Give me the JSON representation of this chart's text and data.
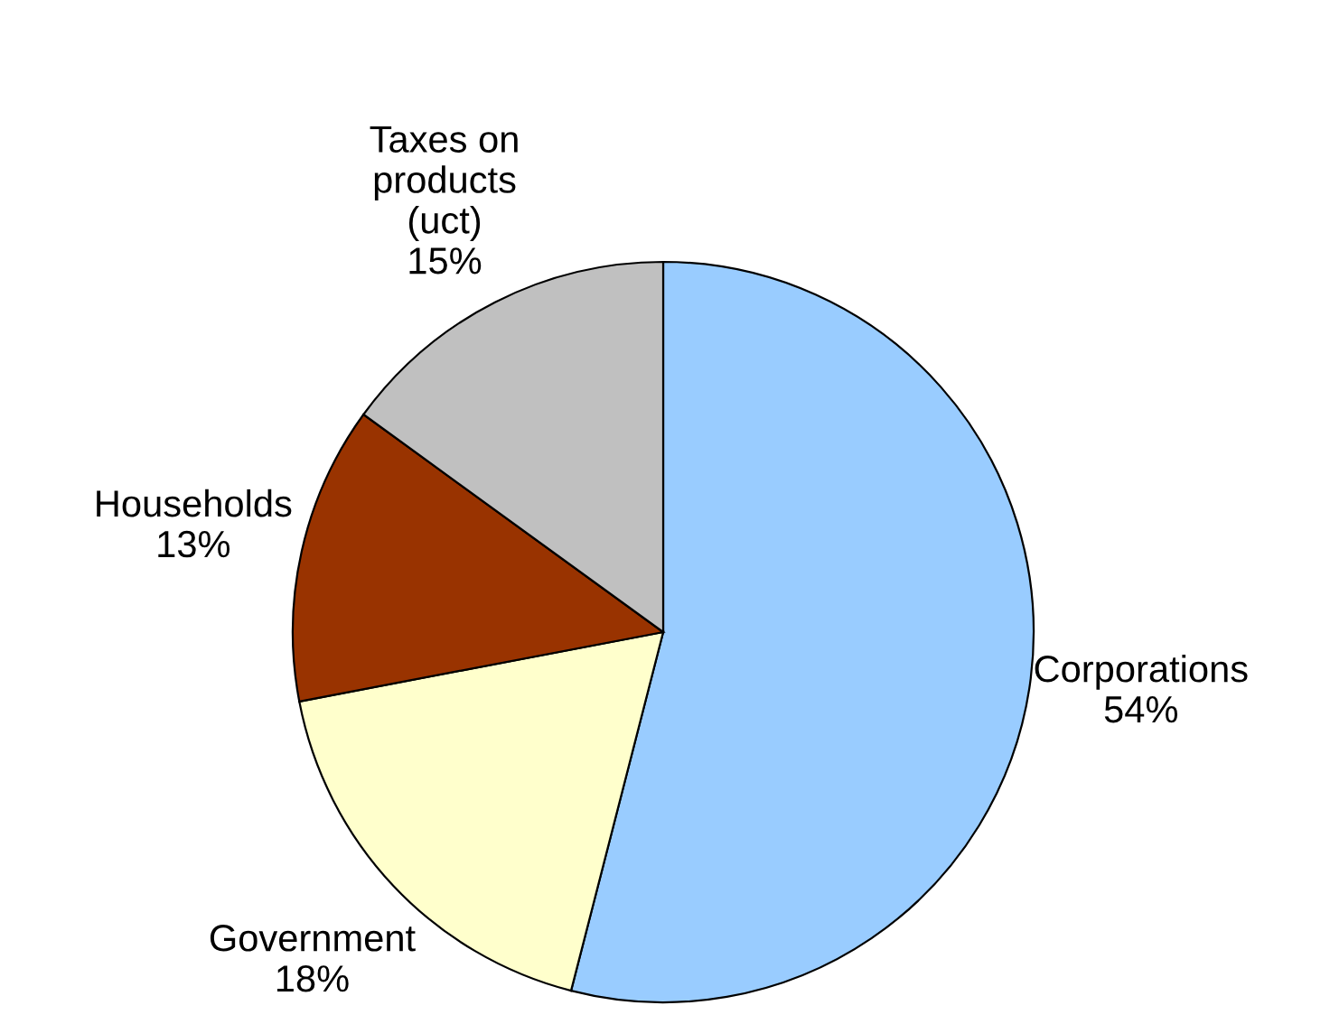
{
  "chart_data": {
    "type": "pie",
    "categories": [
      "Corporations",
      "Government",
      "Households",
      "Taxes on\nproducts\n(uct)"
    ],
    "values": [
      54,
      18,
      13,
      15
    ],
    "value_labels": [
      "54%",
      "18%",
      "13%",
      "15%"
    ],
    "colors": [
      "#99ccff",
      "#ffffcc",
      "#993300",
      "#c0c0c0"
    ]
  }
}
